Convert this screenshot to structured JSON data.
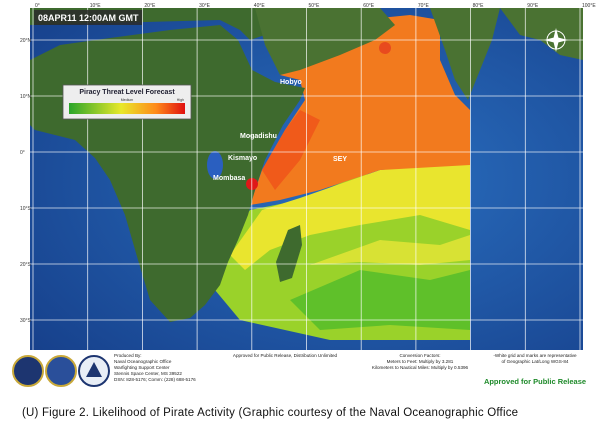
{
  "header": {
    "timestamp": "08APR11 12:00AM GMT"
  },
  "legend": {
    "title": "Piracy Threat Level Forecast",
    "mid_label": "Medium",
    "high_label": "High"
  },
  "grid": {
    "longitudes": [
      "0°",
      "10°E",
      "20°E",
      "30°E",
      "40°E",
      "50°E",
      "60°E",
      "70°E",
      "80°E",
      "90°E",
      "100°E"
    ],
    "latitudes": [
      "20°N",
      "10°N",
      "0°",
      "10°S",
      "20°S",
      "30°S"
    ]
  },
  "places": [
    "Hobyo",
    "Mogadishu",
    "Kismayo",
    "Mombasa",
    "SEY"
  ],
  "footer": {
    "producer": [
      "Produced By:",
      "Naval Oceanographic Office",
      "Warfighting Support Center",
      "Stennis Space Center, MS 39522",
      "DSN: 828-5176; Comm: (228) 688-5176"
    ],
    "release": "Approved for Public Release, Distribution Unlimited",
    "conversion": [
      "Conversion Factors:",
      "Meters to Feet: Multiply by 3.281",
      "Kilometers to Nautical Miles: Multiply by 0.5396"
    ],
    "grid_note": [
      "-White grid and marks are representative",
      "of Geographic Lat/Long WGS-84"
    ],
    "approved": "Approved for Public Release"
  },
  "caption": "(U) Figure 2.  Likelihood of Pirate Activity (Graphic courtesy of the Naval Oceanographic Office"
}
